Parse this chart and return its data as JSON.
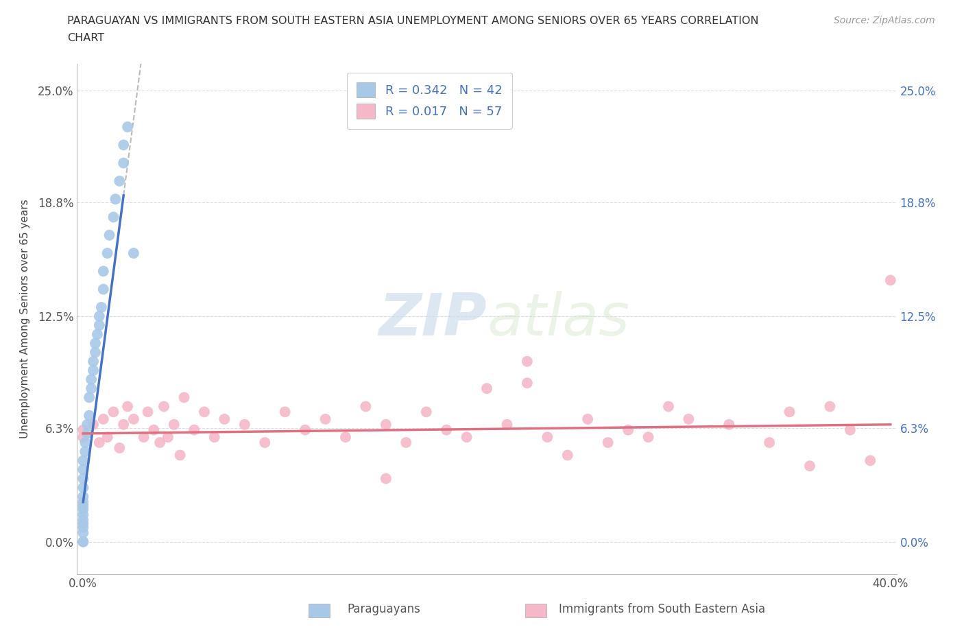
{
  "title_line1": "PARAGUAYAN VS IMMIGRANTS FROM SOUTH EASTERN ASIA UNEMPLOYMENT AMONG SENIORS OVER 65 YEARS CORRELATION",
  "title_line2": "CHART",
  "source": "Source: ZipAtlas.com",
  "ylabel": "Unemployment Among Seniors over 65 years",
  "xlim": [
    -0.003,
    0.403
  ],
  "ylim": [
    -0.018,
    0.265
  ],
  "yticks": [
    0.0,
    0.063,
    0.125,
    0.188,
    0.25
  ],
  "ytick_labels": [
    "0.0%",
    "6.3%",
    "12.5%",
    "18.8%",
    "25.0%"
  ],
  "xticks": [
    0.0,
    0.1,
    0.2,
    0.3,
    0.4
  ],
  "xtick_labels": [
    "0.0%",
    "",
    "",
    "",
    "40.0%"
  ],
  "legend_entries": [
    {
      "label": "Paraguayans",
      "color": "#a8c8e8",
      "R": "0.342",
      "N": "42"
    },
    {
      "label": "Immigrants from South Eastern Asia",
      "color": "#f5b8c8",
      "R": "0.017",
      "N": "57"
    }
  ],
  "blue_line_color": "#4472c4",
  "red_line_color": "#e07080",
  "dashed_line_color": "#bbbbbb",
  "scatter_blue": "#a8c8e8",
  "scatter_pink": "#f5b8c8",
  "background_color": "#ffffff",
  "grid_color": "#dddddd",
  "par_x": [
    0.0,
    0.0,
    0.0,
    0.0,
    0.0,
    0.0,
    0.0,
    0.0,
    0.0,
    0.0,
    0.0,
    0.0,
    0.0,
    0.0,
    0.0,
    0.001,
    0.001,
    0.002,
    0.002,
    0.003,
    0.003,
    0.004,
    0.004,
    0.005,
    0.005,
    0.006,
    0.006,
    0.007,
    0.008,
    0.008,
    0.009,
    0.01,
    0.01,
    0.012,
    0.013,
    0.015,
    0.016,
    0.018,
    0.02,
    0.02,
    0.022,
    0.025
  ],
  "par_y": [
    0.0,
    0.0,
    0.005,
    0.008,
    0.01,
    0.012,
    0.015,
    0.018,
    0.02,
    0.022,
    0.025,
    0.03,
    0.035,
    0.04,
    0.045,
    0.05,
    0.055,
    0.06,
    0.065,
    0.07,
    0.08,
    0.085,
    0.09,
    0.095,
    0.1,
    0.105,
    0.11,
    0.115,
    0.12,
    0.125,
    0.13,
    0.14,
    0.15,
    0.16,
    0.17,
    0.18,
    0.19,
    0.2,
    0.21,
    0.22,
    0.23,
    0.16
  ],
  "sea_x": [
    0.0,
    0.0,
    0.005,
    0.008,
    0.01,
    0.012,
    0.015,
    0.018,
    0.02,
    0.022,
    0.025,
    0.03,
    0.032,
    0.035,
    0.038,
    0.04,
    0.042,
    0.045,
    0.048,
    0.05,
    0.055,
    0.06,
    0.065,
    0.07,
    0.08,
    0.09,
    0.1,
    0.11,
    0.12,
    0.13,
    0.14,
    0.15,
    0.16,
    0.17,
    0.18,
    0.19,
    0.2,
    0.21,
    0.22,
    0.23,
    0.24,
    0.25,
    0.26,
    0.27,
    0.28,
    0.29,
    0.3,
    0.32,
    0.34,
    0.35,
    0.36,
    0.37,
    0.38,
    0.39,
    0.4,
    0.22,
    0.15
  ],
  "sea_y": [
    0.062,
    0.058,
    0.065,
    0.055,
    0.068,
    0.058,
    0.072,
    0.052,
    0.065,
    0.075,
    0.068,
    0.058,
    0.072,
    0.062,
    0.055,
    0.075,
    0.058,
    0.065,
    0.048,
    0.08,
    0.062,
    0.072,
    0.058,
    0.068,
    0.065,
    0.055,
    0.072,
    0.062,
    0.068,
    0.058,
    0.075,
    0.065,
    0.055,
    0.072,
    0.062,
    0.058,
    0.085,
    0.065,
    0.1,
    0.058,
    0.048,
    0.068,
    0.055,
    0.062,
    0.058,
    0.075,
    0.068,
    0.065,
    0.055,
    0.072,
    0.042,
    0.075,
    0.062,
    0.045,
    0.145,
    0.088,
    0.035
  ]
}
